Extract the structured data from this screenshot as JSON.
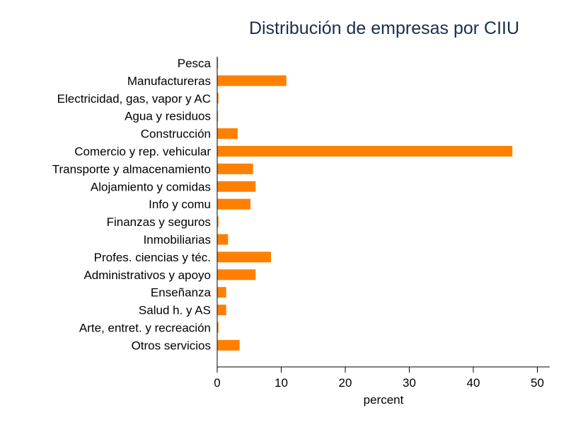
{
  "chart_data": {
    "type": "bar",
    "orientation": "horizontal",
    "title": "Distribución de empresas por CIIU",
    "xlabel": "percent",
    "ylabel": "",
    "xlim": [
      0,
      52
    ],
    "xticks": [
      0,
      10,
      20,
      30,
      40,
      50
    ],
    "grid": false,
    "legend": "none",
    "bar_color": "#ff8000",
    "categories": [
      "Pesca",
      "Manufactureras",
      "Electricidad, gas, vapor y AC",
      "Agua y residuos",
      "Construcción",
      "Comercio y rep. vehicular",
      "Transporte y almacenamiento",
      "Alojamiento y comidas",
      "Info y comu",
      "Finanzas y seguros",
      "Inmobiliarias",
      "Profes. ciencias y téc.",
      "Administrativos y apoyo",
      "Enseñanza",
      "Salud h. y AS",
      "Arte, entret. y recreación",
      "Otros servicios"
    ],
    "values": [
      0.1,
      10.8,
      0.2,
      0.1,
      3.2,
      46.1,
      5.6,
      6.0,
      5.2,
      0.2,
      1.7,
      8.4,
      6.0,
      1.4,
      1.4,
      0.2,
      3.5
    ]
  }
}
